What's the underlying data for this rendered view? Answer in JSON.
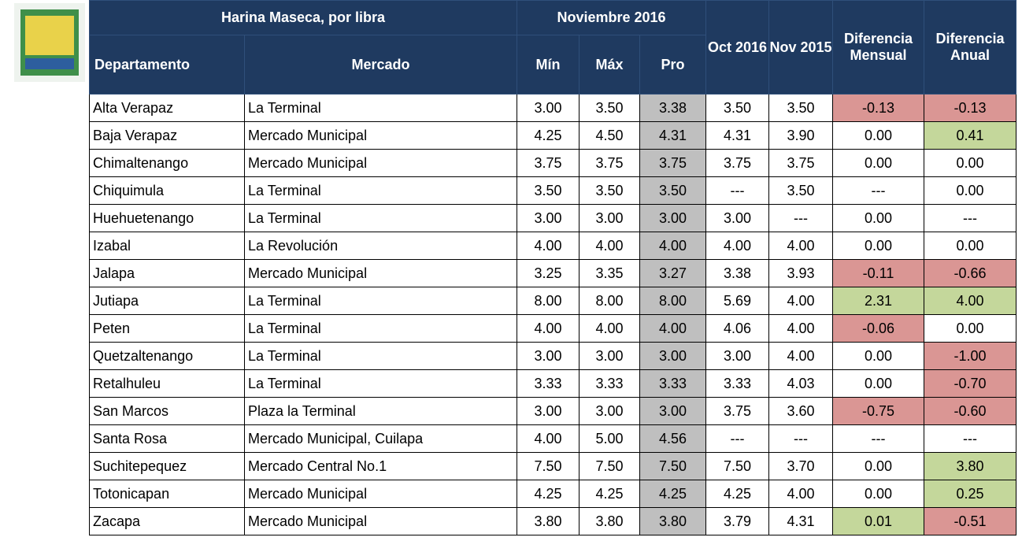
{
  "table": {
    "group_headers": [
      "Harina Maseca, por libra",
      "Noviembre 2016"
    ],
    "columns": [
      "Departamento",
      "Mercado",
      "Mín",
      "Máx",
      "Pro",
      "Oct 2016",
      "Nov 2015",
      "Diferencia Mensual",
      "Diferencia Anual"
    ],
    "rows": [
      [
        "Alta Verapaz",
        "La Terminal",
        "3.00",
        "3.50",
        "3.38",
        "3.50",
        "3.50",
        "-0.13",
        "-0.13"
      ],
      [
        "Baja Verapaz",
        "Mercado Municipal",
        "4.25",
        "4.50",
        "4.31",
        "4.31",
        "3.90",
        "0.00",
        "0.41"
      ],
      [
        "Chimaltenango",
        "Mercado Municipal",
        "3.75",
        "3.75",
        "3.75",
        "3.75",
        "3.75",
        "0.00",
        "0.00"
      ],
      [
        "Chiquimula",
        "La Terminal",
        "3.50",
        "3.50",
        "3.50",
        "---",
        "3.50",
        "---",
        "0.00"
      ],
      [
        "Huehuetenango",
        "La Terminal",
        "3.00",
        "3.00",
        "3.00",
        "3.00",
        "---",
        "0.00",
        "---"
      ],
      [
        "Izabal",
        "La Revolución",
        "4.00",
        "4.00",
        "4.00",
        "4.00",
        "4.00",
        "0.00",
        "0.00"
      ],
      [
        "Jalapa",
        "Mercado Municipal",
        "3.25",
        "3.35",
        "3.27",
        "3.38",
        "3.93",
        "-0.11",
        "-0.66"
      ],
      [
        "Jutiapa",
        "La Terminal",
        "8.00",
        "8.00",
        "8.00",
        "5.69",
        "4.00",
        "2.31",
        "4.00"
      ],
      [
        "Peten",
        "La Terminal",
        "4.00",
        "4.00",
        "4.00",
        "4.06",
        "4.00",
        "-0.06",
        "0.00"
      ],
      [
        "Quetzaltenango",
        "La Terminal",
        "3.00",
        "3.00",
        "3.00",
        "3.00",
        "4.00",
        "0.00",
        "-1.00"
      ],
      [
        "Retalhuleu",
        "La Terminal",
        "3.33",
        "3.33",
        "3.33",
        "3.33",
        "4.03",
        "0.00",
        "-0.70"
      ],
      [
        "San Marcos",
        "Plaza la Terminal",
        "3.00",
        "3.00",
        "3.00",
        "3.75",
        "3.60",
        "-0.75",
        "-0.60"
      ],
      [
        "Santa Rosa",
        "Mercado Municipal, Cuilapa",
        "4.00",
        "5.00",
        "4.56",
        "---",
        "---",
        "---",
        "---"
      ],
      [
        "Suchitepequez",
        "Mercado Central No.1",
        "7.50",
        "7.50",
        "7.50",
        "7.50",
        "3.70",
        "0.00",
        "3.80"
      ],
      [
        "Totonicapan",
        "Mercado Municipal",
        "4.25",
        "4.25",
        "4.25",
        "4.25",
        "4.00",
        "0.00",
        "0.25"
      ],
      [
        "Zacapa",
        "Mercado Municipal",
        "3.80",
        "3.80",
        "3.80",
        "3.79",
        "4.31",
        "0.01",
        "-0.51"
      ]
    ]
  }
}
